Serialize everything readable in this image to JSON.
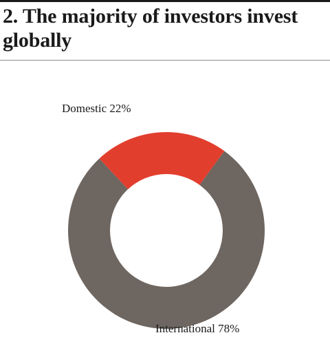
{
  "title": "2. The majority of investors invest globally",
  "colors": {
    "domestic": "#e23e2e",
    "international": "#6e6660",
    "hole": "#ffffff"
  },
  "chart_data": {
    "type": "pie",
    "style": "donut",
    "title": "2. The majority of investors invest globally",
    "legend": "none",
    "slices": [
      {
        "name": "Domestic",
        "value": 22,
        "label": "Domestic 22%"
      },
      {
        "name": "International",
        "value": 78,
        "label": "International 78%"
      }
    ]
  }
}
